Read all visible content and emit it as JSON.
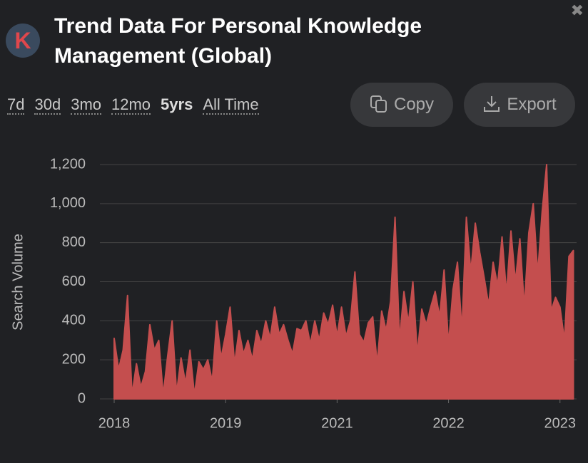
{
  "header": {
    "logo_letter": "K",
    "title": "Trend Data For Personal Knowledge Management (Global)",
    "close": "✖"
  },
  "ranges": [
    "7d",
    "30d",
    "3mo",
    "12mo",
    "5yrs",
    "All Time"
  ],
  "active_range": "5yrs",
  "buttons": {
    "copy": "Copy",
    "export": "Export"
  },
  "chart_data": {
    "type": "area",
    "ylabel": "Search Volume",
    "color": "#c44e4e",
    "grid": true,
    "xlim": [
      2018,
      2023.17
    ],
    "ylim": [
      0,
      1200
    ],
    "yticks": [
      0,
      200,
      400,
      600,
      800,
      {
        "value": 1000,
        "label": "1,000"
      },
      {
        "value": 1200,
        "label": "1,200"
      }
    ],
    "xticks": [
      {
        "value": 2018,
        "label": "2018"
      },
      {
        "value": 2019.25,
        "label": "2019"
      },
      {
        "value": 2020.5,
        "label": "2021"
      },
      {
        "value": 2021.75,
        "label": "2022"
      },
      {
        "value": 2023,
        "label": "2023"
      }
    ],
    "x": [
      2018,
      2018.05,
      2018.1,
      2018.15,
      2018.2,
      2018.25,
      2018.3,
      2018.35,
      2018.4,
      2018.45,
      2018.5,
      2018.55,
      2018.6,
      2018.65,
      2018.7,
      2018.75,
      2018.8,
      2018.85,
      2018.9,
      2018.95,
      2019,
      2019.05,
      2019.1,
      2019.15,
      2019.2,
      2019.25,
      2019.3,
      2019.35,
      2019.4,
      2019.45,
      2019.5,
      2019.55,
      2019.6,
      2019.65,
      2019.7,
      2019.75,
      2019.8,
      2019.85,
      2019.9,
      2019.95,
      2020,
      2020.05,
      2020.1,
      2020.15,
      2020.2,
      2020.25,
      2020.3,
      2020.35,
      2020.4,
      2020.45,
      2020.5,
      2020.55,
      2020.6,
      2020.65,
      2020.7,
      2020.75,
      2020.8,
      2020.85,
      2020.9,
      2020.95,
      2021,
      2021.05,
      2021.1,
      2021.15,
      2021.2,
      2021.25,
      2021.3,
      2021.35,
      2021.4,
      2021.45,
      2021.5,
      2021.55,
      2021.6,
      2021.65,
      2021.7,
      2021.75,
      2021.8,
      2021.85,
      2021.9,
      2021.95,
      2022,
      2022.05,
      2022.1,
      2022.15,
      2022.2,
      2022.25,
      2022.3,
      2022.35,
      2022.4,
      2022.45,
      2022.5,
      2022.55,
      2022.6,
      2022.65,
      2022.7,
      2022.75,
      2022.8,
      2022.85,
      2022.9,
      2022.95,
      2023,
      2023.05,
      2023.1,
      2023.15
    ],
    "values": [
      310,
      150,
      250,
      530,
      20,
      180,
      60,
      140,
      380,
      250,
      300,
      20,
      220,
      400,
      30,
      210,
      80,
      250,
      20,
      190,
      150,
      200,
      90,
      400,
      210,
      330,
      470,
      180,
      350,
      230,
      300,
      200,
      350,
      280,
      400,
      310,
      470,
      330,
      380,
      300,
      230,
      360,
      350,
      400,
      280,
      400,
      300,
      440,
      380,
      480,
      320,
      470,
      320,
      400,
      650,
      330,
      290,
      390,
      420,
      180,
      450,
      350,
      500,
      930,
      300,
      550,
      390,
      600,
      230,
      460,
      380,
      470,
      550,
      420,
      660,
      280,
      560,
      700,
      350,
      930,
      650,
      900,
      750,
      620,
      480,
      700,
      580,
      830,
      540,
      860,
      600,
      820,
      470,
      850,
      1000,
      640,
      960,
      1200,
      450,
      520,
      470,
      300,
      730,
      760
    ]
  }
}
